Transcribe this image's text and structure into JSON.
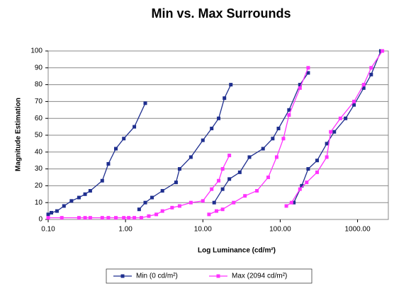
{
  "chart_data": {
    "type": "line",
    "title": "Min vs. Max Surrounds",
    "x_label": "Log Luminance (cd/m²)",
    "y_label": "Magnitude Estimation",
    "x_scale": "log",
    "xlim": [
      0.1,
      2500
    ],
    "ylim": [
      0,
      100
    ],
    "xticks": [
      {
        "value": 0.1,
        "label": "0.10"
      },
      {
        "value": 1,
        "label": "1.00"
      },
      {
        "value": 10,
        "label": "10.00"
      },
      {
        "value": 100,
        "label": "100.00"
      },
      {
        "value": 1000,
        "label": "1000.00"
      }
    ],
    "yticks": [
      0,
      10,
      20,
      30,
      40,
      50,
      60,
      70,
      80,
      90,
      100
    ],
    "grid": true,
    "legend": "bottom",
    "series": [
      {
        "name": "Min (0 cd/m²)",
        "color": "#1f2f8f",
        "x": [
          0.1,
          0.11,
          0.13,
          0.16,
          0.2,
          0.25,
          0.3,
          0.35,
          0.5,
          0.6,
          0.75,
          0.95,
          1.3,
          1.8,
          null,
          1.5,
          1.8,
          2.2,
          3,
          4.5,
          5,
          7,
          10,
          13,
          16,
          19,
          23,
          null,
          14,
          18,
          22,
          30,
          40,
          60,
          80,
          95,
          130,
          180,
          230,
          null,
          150,
          190,
          230,
          300,
          400,
          500,
          700,
          900,
          1200,
          1500,
          2000
        ],
        "values": [
          3,
          4,
          5,
          8,
          11,
          13,
          15,
          17,
          23,
          33,
          42,
          48,
          55,
          69,
          null,
          6,
          10,
          13,
          17,
          22,
          30,
          37,
          47,
          54,
          60,
          72,
          80,
          null,
          10,
          18,
          24,
          28,
          37,
          42,
          48,
          54,
          65,
          80,
          87,
          null,
          10,
          20,
          30,
          35,
          45,
          52,
          60,
          68,
          78,
          86,
          100
        ]
      },
      {
        "name": "Max (2094 cd/m²)",
        "color": "#ff33ff",
        "x": [
          0.1,
          0.15,
          0.25,
          0.3,
          0.35,
          0.5,
          0.6,
          0.75,
          0.95,
          1.1,
          1.3,
          1.6,
          2,
          2.5,
          3,
          4,
          5,
          7,
          10,
          13,
          16,
          18,
          22,
          null,
          12,
          15,
          18,
          25,
          35,
          50,
          70,
          90,
          110,
          130,
          180,
          230,
          null,
          120,
          140,
          180,
          220,
          300,
          400,
          450,
          600,
          900,
          1200,
          1500,
          2094
        ],
        "values": [
          1,
          1,
          1,
          1,
          1,
          1,
          1,
          1,
          1,
          1,
          1,
          1,
          2,
          3,
          5,
          7,
          8,
          10,
          11,
          18,
          23,
          30,
          38,
          null,
          3,
          5,
          6,
          10,
          14,
          17,
          25,
          37,
          48,
          62,
          78,
          90,
          null,
          8,
          10,
          18,
          22,
          28,
          37,
          52,
          60,
          70,
          80,
          90,
          100
        ]
      }
    ]
  }
}
